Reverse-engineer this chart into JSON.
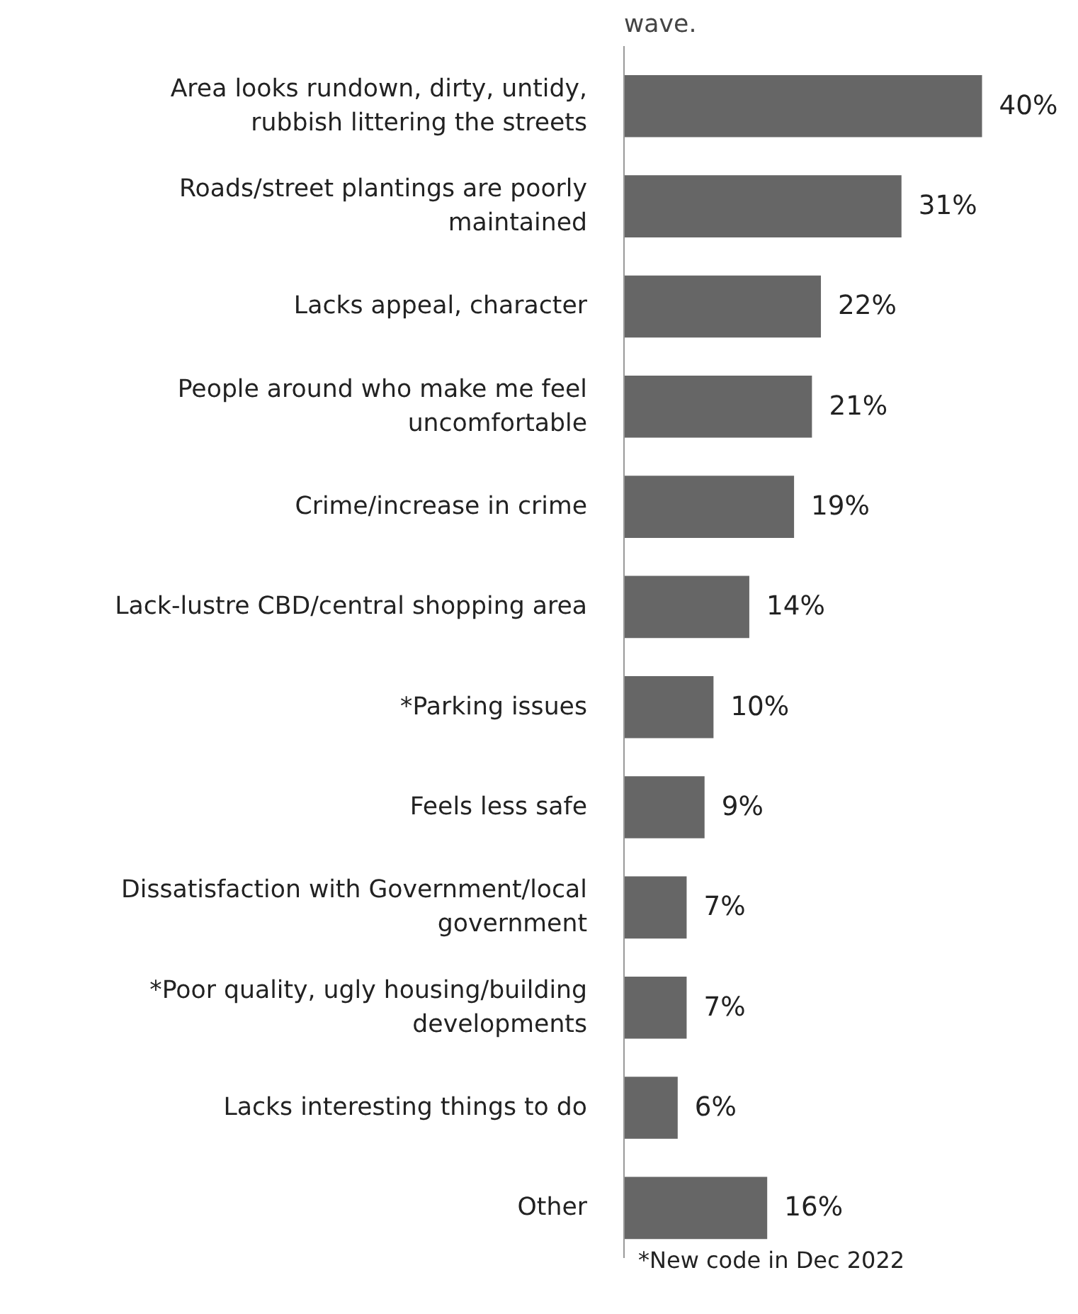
{
  "chart_data": {
    "type": "bar",
    "orientation": "horizontal",
    "title": "wave.",
    "categories": [
      "Area looks rundown, dirty, untidy, rubbish littering the streets",
      "Roads/street plantings are poorly maintained",
      "Lacks appeal, character",
      "People around who make me feel uncomfortable",
      "Crime/increase in crime",
      "Lack-lustre CBD/central shopping area",
      "*Parking issues",
      "Feels less safe",
      "Dissatisfaction with Government/local government",
      "*Poor quality, ugly housing/building developments",
      "Lacks interesting things to do",
      "Other"
    ],
    "values": [
      40,
      31,
      22,
      21,
      19,
      14,
      10,
      9,
      7,
      7,
      6,
      16
    ],
    "value_labels": [
      "40%",
      "31%",
      "22%",
      "21%",
      "19%",
      "14%",
      "10%",
      "9%",
      "7%",
      "7%",
      "6%",
      "16%"
    ],
    "color": "#666666",
    "annotations": [
      "*New code in Dec 2022"
    ]
  }
}
